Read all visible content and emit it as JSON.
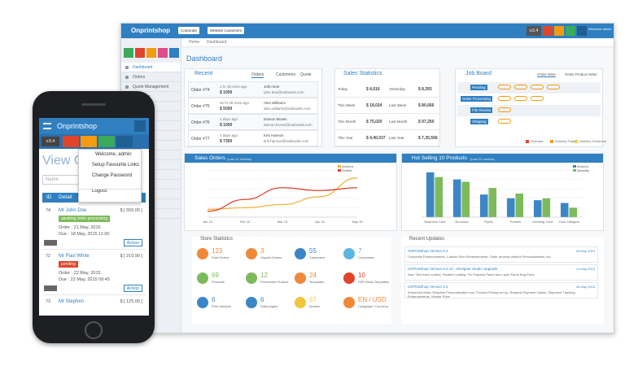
{
  "desktop": {
    "brand": "Onprintshop",
    "tags": [
      "Corporate",
      "Website Customers"
    ],
    "version": "v.5.4",
    "welcome": "Welcome admin",
    "breadcrumb": [
      "Home",
      "Dashboard"
    ],
    "menu": [
      "Dashboard",
      "Orders",
      "Quote Management",
      "Customer"
    ],
    "page_title": "Dashboard",
    "recent": {
      "title": "Recent",
      "tabs": [
        "Orders",
        "Customers",
        "Quote"
      ],
      "rows": [
        [
          "Order #74",
          "1 hr 36 mins ago",
          "$ 1000",
          "John Doe",
          "john.doe@radixweb.com"
        ],
        [
          "Order #75",
          "20 hr 26 mins ago",
          "$ 5000",
          "Alex Williams",
          "alex.williams@radixweb.com"
        ],
        [
          "Order #76",
          "2 days ago",
          "$ 1000",
          "Damon Brown",
          "damon.brown@radixweb.com"
        ],
        [
          "Order #77",
          "3 days ago",
          "$ 7300",
          "Kris Hanson",
          "kris.hanson@radixweb.com"
        ]
      ]
    },
    "sales_statistics": {
      "title": "Sales Statistics",
      "rows": [
        [
          "Today",
          "$ 4,616",
          "Yesterday",
          "$ 8,393"
        ],
        [
          "This Week",
          "$ 18,024",
          "Last Week",
          "$ 80,666"
        ],
        [
          "This Month",
          "$ 75,020",
          "Last Month",
          "$ 97,250"
        ],
        [
          "This Year",
          "$ 4,40,037",
          "Last Year",
          "$ 7,35,566"
        ]
      ]
    },
    "job_board": {
      "title": "Job Board",
      "tabs": [
        "Order Wise",
        "Order Product Wise"
      ],
      "stages": [
        "Pending",
        "Order Processing",
        "File Review",
        "Shipping"
      ],
      "legend": [
        "Overdue",
        "Delivery Today",
        "Delivery Tomorrow"
      ]
    },
    "store_statistics": {
      "title": "Store Statistics",
      "items": [
        {
          "value": "123",
          "label": "Paid Orders"
        },
        {
          "value": "3",
          "label": "Unpaid Orders"
        },
        {
          "value": "55",
          "label": "Customers"
        },
        {
          "value": "7",
          "label": "Corporates"
        },
        {
          "value": "69",
          "label": "Products"
        },
        {
          "value": "12",
          "label": "Predefined Product"
        },
        {
          "value": "24",
          "label": "Templates"
        },
        {
          "value": "10",
          "label": "PDF Block Templates"
        },
        {
          "value": "6",
          "label": "Print Vendors"
        },
        {
          "value": "6",
          "label": "Sales Agent"
        },
        {
          "value": "57",
          "label": "Quotes"
        },
        {
          "value": "EN / USD",
          "label": "Language / Currency"
        }
      ]
    },
    "recent_updates": {
      "title": "Recent Updates",
      "items": [
        {
          "title": "OnPrintShop Version 6.2",
          "date": "26 May 2015",
          "text": "Corporate Enhancements, Custom Size Enhancements, Order process without Personalization, etc."
        },
        {
          "title": "OnPrintShop Version 6.4.12 - Designer Studio Upgrade",
          "date": "14 May 2015",
          "text": "New 'Text Area' control, Parallel Loading, Fix Property Panel and Layer Panel Bug Fixes"
        },
        {
          "title": "OnPrintShop Version 6.4",
          "date": "26 May 2015",
          "text": "Enhanced Mass Template Personalization tool, Product Pricing set up, Request Payment Option, Shipment Tracking Enhancements, Vendor Price"
        }
      ]
    }
  },
  "chart_data": [
    {
      "type": "line",
      "title": "Sales Orders",
      "subtitle": "(Last 12 months)",
      "categories": [
        "Jan 15",
        "Feb 15",
        "Mar 15",
        "Apr 15",
        "May 15"
      ],
      "ylim": [
        0,
        15000
      ],
      "y2lim": [
        0,
        16
      ],
      "series": [
        {
          "name": "Amount",
          "color": "#f2b33d",
          "values": [
            2500,
            3000,
            4000,
            6500,
            12500
          ]
        },
        {
          "name": "Orders",
          "color": "#e0452b",
          "axis": "y2",
          "values": [
            2,
            6,
            10,
            9,
            10
          ]
        }
      ]
    },
    {
      "type": "bar",
      "title": "Hot Selling 10 Products",
      "subtitle": "(Last 12 months)",
      "categories": [
        "Business Card",
        "Brochure",
        "Flyers",
        "Posters",
        "Greeting Card",
        "Door Hangers"
      ],
      "ylim": [
        0,
        100
      ],
      "series": [
        {
          "name": "Amount",
          "color": "#3b87c6",
          "values": [
            95,
            80,
            48,
            40,
            36,
            30
          ]
        },
        {
          "name": "Quantity",
          "color": "#7dbb5a",
          "values": [
            85,
            75,
            62,
            50,
            40,
            20
          ]
        }
      ]
    }
  ],
  "phone": {
    "brand": "Onprintshop",
    "version": "v.5.4",
    "menu": [
      "Welcome, admin",
      "Setup Favourite Links",
      "Change Password",
      "Logout"
    ],
    "page_title": "View O",
    "search": "Name",
    "columns": [
      "ID",
      "Detail"
    ],
    "rows": [
      {
        "id": "74",
        "name": "Mr John Doe",
        "amount": "$ [ 555.00 ]",
        "status": "awaiting order processing",
        "order": "Order : 21 May, 2015",
        "due": "Due : 18 May, 2015 11:00",
        "action": "Action"
      },
      {
        "id": "72",
        "name": "Mr Paul White",
        "amount": "$ [ 210.90 ]",
        "status": "pending",
        "order": "Order : 22 May, 2015",
        "due": "Due : 22 May, 2015 09:45",
        "action": "Action"
      },
      {
        "id": "73",
        "name": "Mr Stephen",
        "amount": "$ [ 125.00 ]"
      }
    ]
  }
}
